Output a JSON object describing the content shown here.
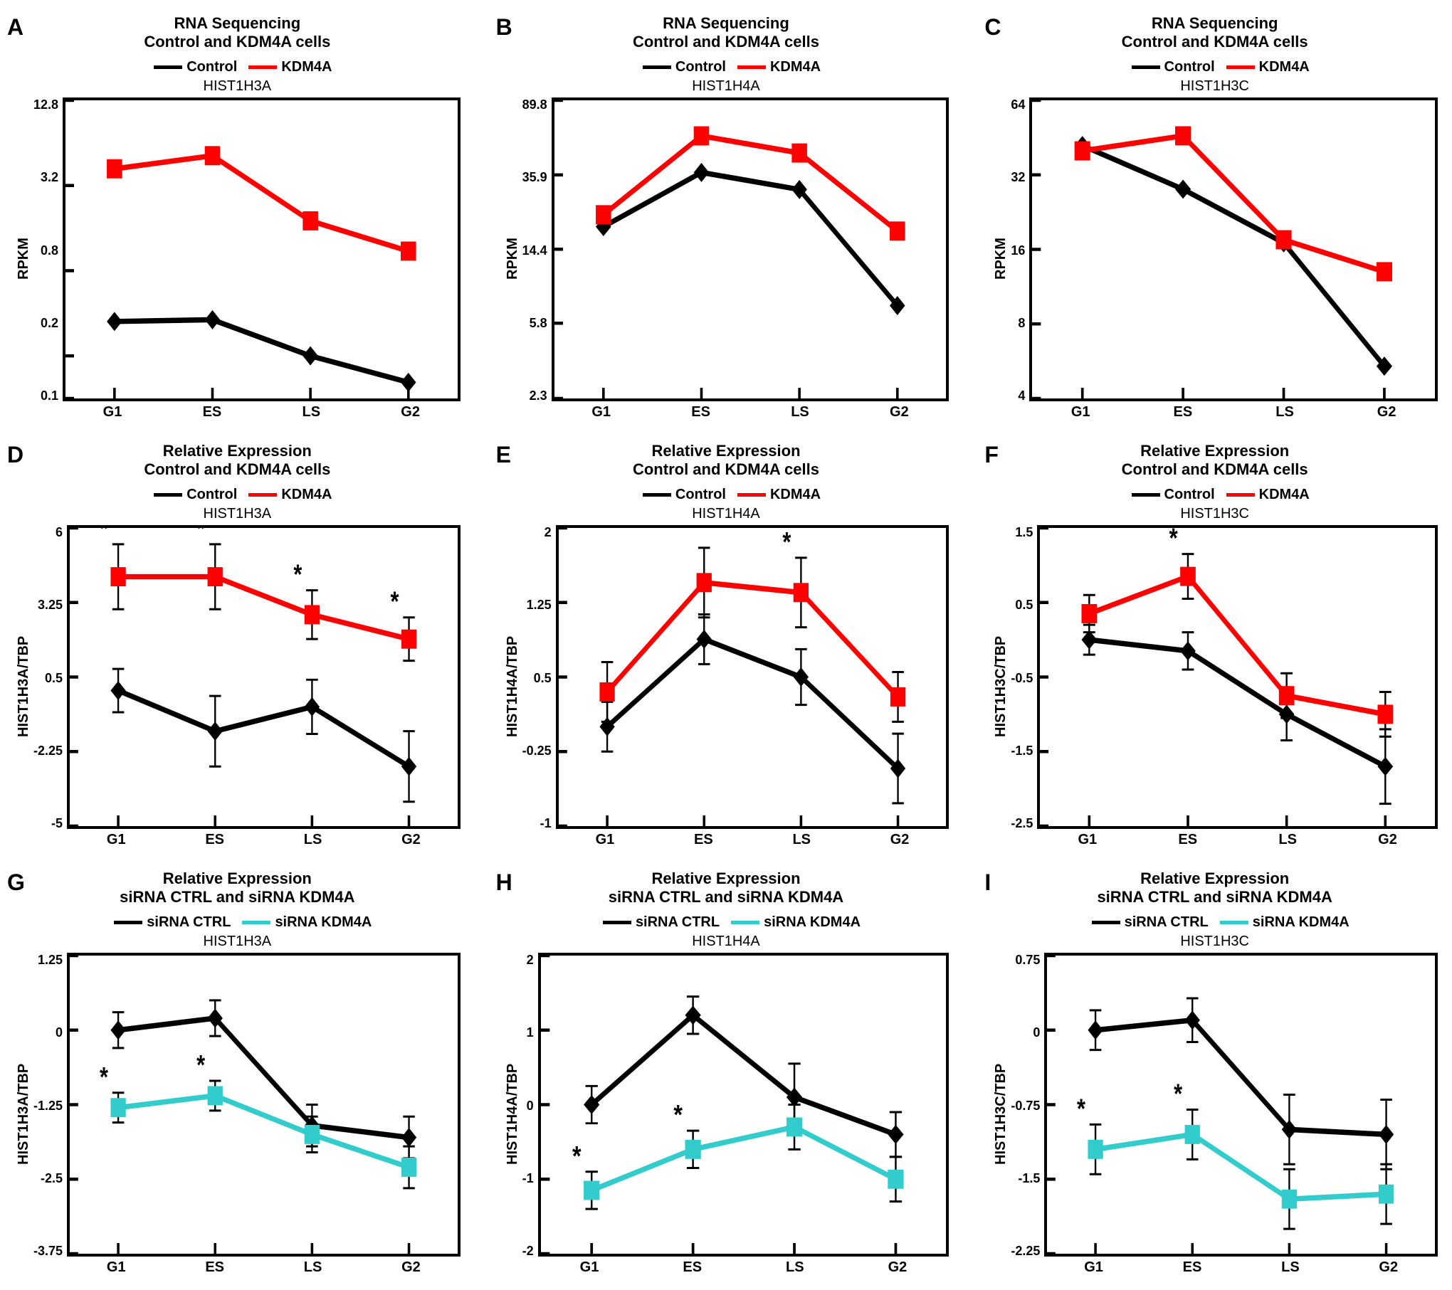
{
  "global": {
    "colors": {
      "control": "#000000",
      "kdm4a": "#ff0000",
      "sirna_ctrl": "#000000",
      "sirna_kdm4a": "#33cccc",
      "axis": "#000000",
      "tick": "#000000",
      "background": "#ffffff"
    },
    "line_width": 5,
    "marker_size": 9,
    "error_cap_width": 14,
    "xticks": [
      "G1",
      "ES",
      "LS",
      "G2"
    ],
    "title_fontsize": 22,
    "label_fontsize": 20,
    "tick_fontsize": 18,
    "panel_letter_fontsize": 32,
    "font_family": "Arial"
  },
  "legends": {
    "ctrl_kdm4a": [
      {
        "label": "Control",
        "color": "#000000"
      },
      {
        "label": "KDM4A",
        "color": "#ff0000"
      }
    ],
    "sirna": [
      {
        "label": "siRNA CTRL",
        "color": "#000000"
      },
      {
        "label": "siRNA KDM4A",
        "color": "#33cccc"
      }
    ]
  },
  "panels": [
    {
      "letter": "A",
      "type": "line",
      "title1": "RNA Sequencing",
      "title2": "Control and KDM4A cells",
      "legend": "ctrl_kdm4a",
      "subtitle": "HIST1H3A",
      "ylabel": "RPKM",
      "yscale": "log",
      "yticks": [
        0.1,
        0.2,
        0.8,
        3.2,
        12.8
      ],
      "series": [
        {
          "color": "#000000",
          "marker": "diamond",
          "values": [
            0.35,
            0.36,
            0.2,
            0.13
          ]
        },
        {
          "color": "#ff0000",
          "marker": "square",
          "values": [
            4.2,
            5.2,
            1.8,
            1.1
          ]
        }
      ]
    },
    {
      "letter": "B",
      "type": "line",
      "title1": "RNA Sequencing",
      "title2": "Control and KDM4A cells",
      "legend": "ctrl_kdm4a",
      "subtitle": "HIST1H4A",
      "ylabel": "RPKM",
      "yscale": "log",
      "yticks": [
        2.3,
        5.8,
        14.4,
        35.9,
        89.8
      ],
      "series": [
        {
          "color": "#000000",
          "marker": "diamond",
          "values": [
            19,
            37,
            30,
            7.2
          ]
        },
        {
          "color": "#ff0000",
          "marker": "square",
          "values": [
            22,
            58,
            47,
            18
          ]
        }
      ]
    },
    {
      "letter": "C",
      "type": "line",
      "title1": "RNA Sequencing",
      "title2": "Control and KDM4A cells",
      "legend": "ctrl_kdm4a",
      "subtitle": "HIST1H3C",
      "ylabel": "RPKM",
      "yscale": "log",
      "yticks": [
        4.0,
        8.0,
        16.0,
        32.0,
        64.0
      ],
      "series": [
        {
          "color": "#000000",
          "marker": "diamond",
          "values": [
            42,
            28,
            17,
            5.4
          ]
        },
        {
          "color": "#ff0000",
          "marker": "square",
          "values": [
            40,
            46,
            17.5,
            13
          ]
        }
      ]
    },
    {
      "letter": "D",
      "type": "line",
      "title1": "Relative Expression",
      "title2": "Control and KDM4A cells",
      "legend": "ctrl_kdm4a",
      "subtitle": "HIST1H3A",
      "ylabel": "HIST1H3A/TBP",
      "yscale": "linear",
      "yticks": [
        -5,
        -2.25,
        0.5,
        3.25,
        6
      ],
      "series": [
        {
          "color": "#000000",
          "marker": "diamond",
          "values": [
            0.0,
            -1.5,
            -0.6,
            -2.8
          ],
          "errors": [
            0.8,
            1.3,
            1.0,
            1.3
          ]
        },
        {
          "color": "#ff0000",
          "marker": "square",
          "values": [
            4.2,
            4.2,
            2.8,
            1.9
          ],
          "errors": [
            1.2,
            1.2,
            0.9,
            0.8
          ],
          "stars": [
            true,
            true,
            true,
            true
          ]
        }
      ]
    },
    {
      "letter": "E",
      "type": "line",
      "title1": "Relative Expression",
      "title2": "Control and KDM4A cells",
      "legend": "ctrl_kdm4a",
      "subtitle": "HIST1H4A",
      "ylabel": "HIST1H4A/TBP",
      "yscale": "linear",
      "yticks": [
        -1,
        -0.25,
        0.5,
        1.25,
        2
      ],
      "series": [
        {
          "color": "#000000",
          "marker": "diamond",
          "values": [
            0.0,
            0.88,
            0.5,
            -0.42
          ],
          "errors": [
            0.25,
            0.25,
            0.28,
            0.35
          ]
        },
        {
          "color": "#ff0000",
          "marker": "square",
          "values": [
            0.35,
            1.45,
            1.35,
            0.3
          ],
          "errors": [
            0.3,
            0.35,
            0.35,
            0.25
          ],
          "stars": [
            false,
            false,
            true,
            false
          ]
        }
      ]
    },
    {
      "letter": "F",
      "type": "line",
      "title1": "Relative Expression",
      "title2": "Control and KDM4A cells",
      "legend": "ctrl_kdm4a",
      "subtitle": "HIST1H3C",
      "ylabel": "HIST1H3C/TBP",
      "yscale": "linear",
      "yticks": [
        -2.5,
        -1.5,
        -0.5,
        0.5,
        1.5
      ],
      "series": [
        {
          "color": "#000000",
          "marker": "diamond",
          "values": [
            0.0,
            -0.15,
            -1.0,
            -1.7
          ],
          "errors": [
            0.2,
            0.25,
            0.35,
            0.5
          ]
        },
        {
          "color": "#ff0000",
          "marker": "square",
          "values": [
            0.35,
            0.85,
            -0.75,
            -1.0
          ],
          "errors": [
            0.25,
            0.3,
            0.3,
            0.3
          ],
          "stars": [
            false,
            true,
            false,
            false
          ]
        }
      ]
    },
    {
      "letter": "G",
      "type": "line",
      "title1": "Relative Expression",
      "title2": "siRNA CTRL and siRNA KDM4A",
      "legend": "sirna",
      "subtitle": "HIST1H3A",
      "ylabel": "HIST1H3A/TBP",
      "yscale": "linear",
      "yticks": [
        -3.75,
        -2.5,
        -1.25,
        0,
        1.25
      ],
      "series": [
        {
          "color": "#000000",
          "marker": "diamond",
          "values": [
            0.0,
            0.2,
            -1.6,
            -1.8
          ],
          "errors": [
            0.3,
            0.3,
            0.35,
            0.35
          ]
        },
        {
          "color": "#33cccc",
          "marker": "square",
          "values": [
            -1.3,
            -1.1,
            -1.75,
            -2.3
          ],
          "errors": [
            0.25,
            0.25,
            0.3,
            0.35
          ],
          "stars": [
            true,
            true,
            false,
            false
          ]
        }
      ]
    },
    {
      "letter": "H",
      "type": "line",
      "title1": "Relative Expression",
      "title2": "siRNA CTRL and siRNA KDM4A",
      "legend": "sirna",
      "subtitle": "HIST1H4A",
      "ylabel": "HIST1H4A/TBP",
      "yscale": "linear",
      "yticks": [
        -2,
        -1,
        0,
        1,
        2
      ],
      "series": [
        {
          "color": "#000000",
          "marker": "diamond",
          "values": [
            0.0,
            1.2,
            0.1,
            -0.4
          ],
          "errors": [
            0.25,
            0.25,
            0.45,
            0.3
          ]
        },
        {
          "color": "#33cccc",
          "marker": "square",
          "values": [
            -1.15,
            -0.6,
            -0.3,
            -1.0
          ],
          "errors": [
            0.25,
            0.25,
            0.3,
            0.3
          ],
          "stars": [
            true,
            true,
            false,
            false
          ]
        }
      ]
    },
    {
      "letter": "I",
      "type": "line",
      "title1": "Relative Expression",
      "title2": "siRNA CTRL and siRNA KDM4A",
      "legend": "sirna",
      "subtitle": "HIST1H3C",
      "ylabel": "HIST1H3C/TBP",
      "yscale": "linear",
      "yticks": [
        -2.25,
        -1.5,
        -0.75,
        0,
        0.75
      ],
      "series": [
        {
          "color": "#000000",
          "marker": "diamond",
          "values": [
            0.0,
            0.1,
            -1.0,
            -1.05
          ],
          "errors": [
            0.2,
            0.22,
            0.35,
            0.35
          ]
        },
        {
          "color": "#33cccc",
          "marker": "square",
          "values": [
            -1.2,
            -1.05,
            -1.7,
            -1.65
          ],
          "errors": [
            0.25,
            0.25,
            0.3,
            0.3
          ],
          "stars": [
            true,
            true,
            false,
            false
          ]
        }
      ]
    }
  ]
}
